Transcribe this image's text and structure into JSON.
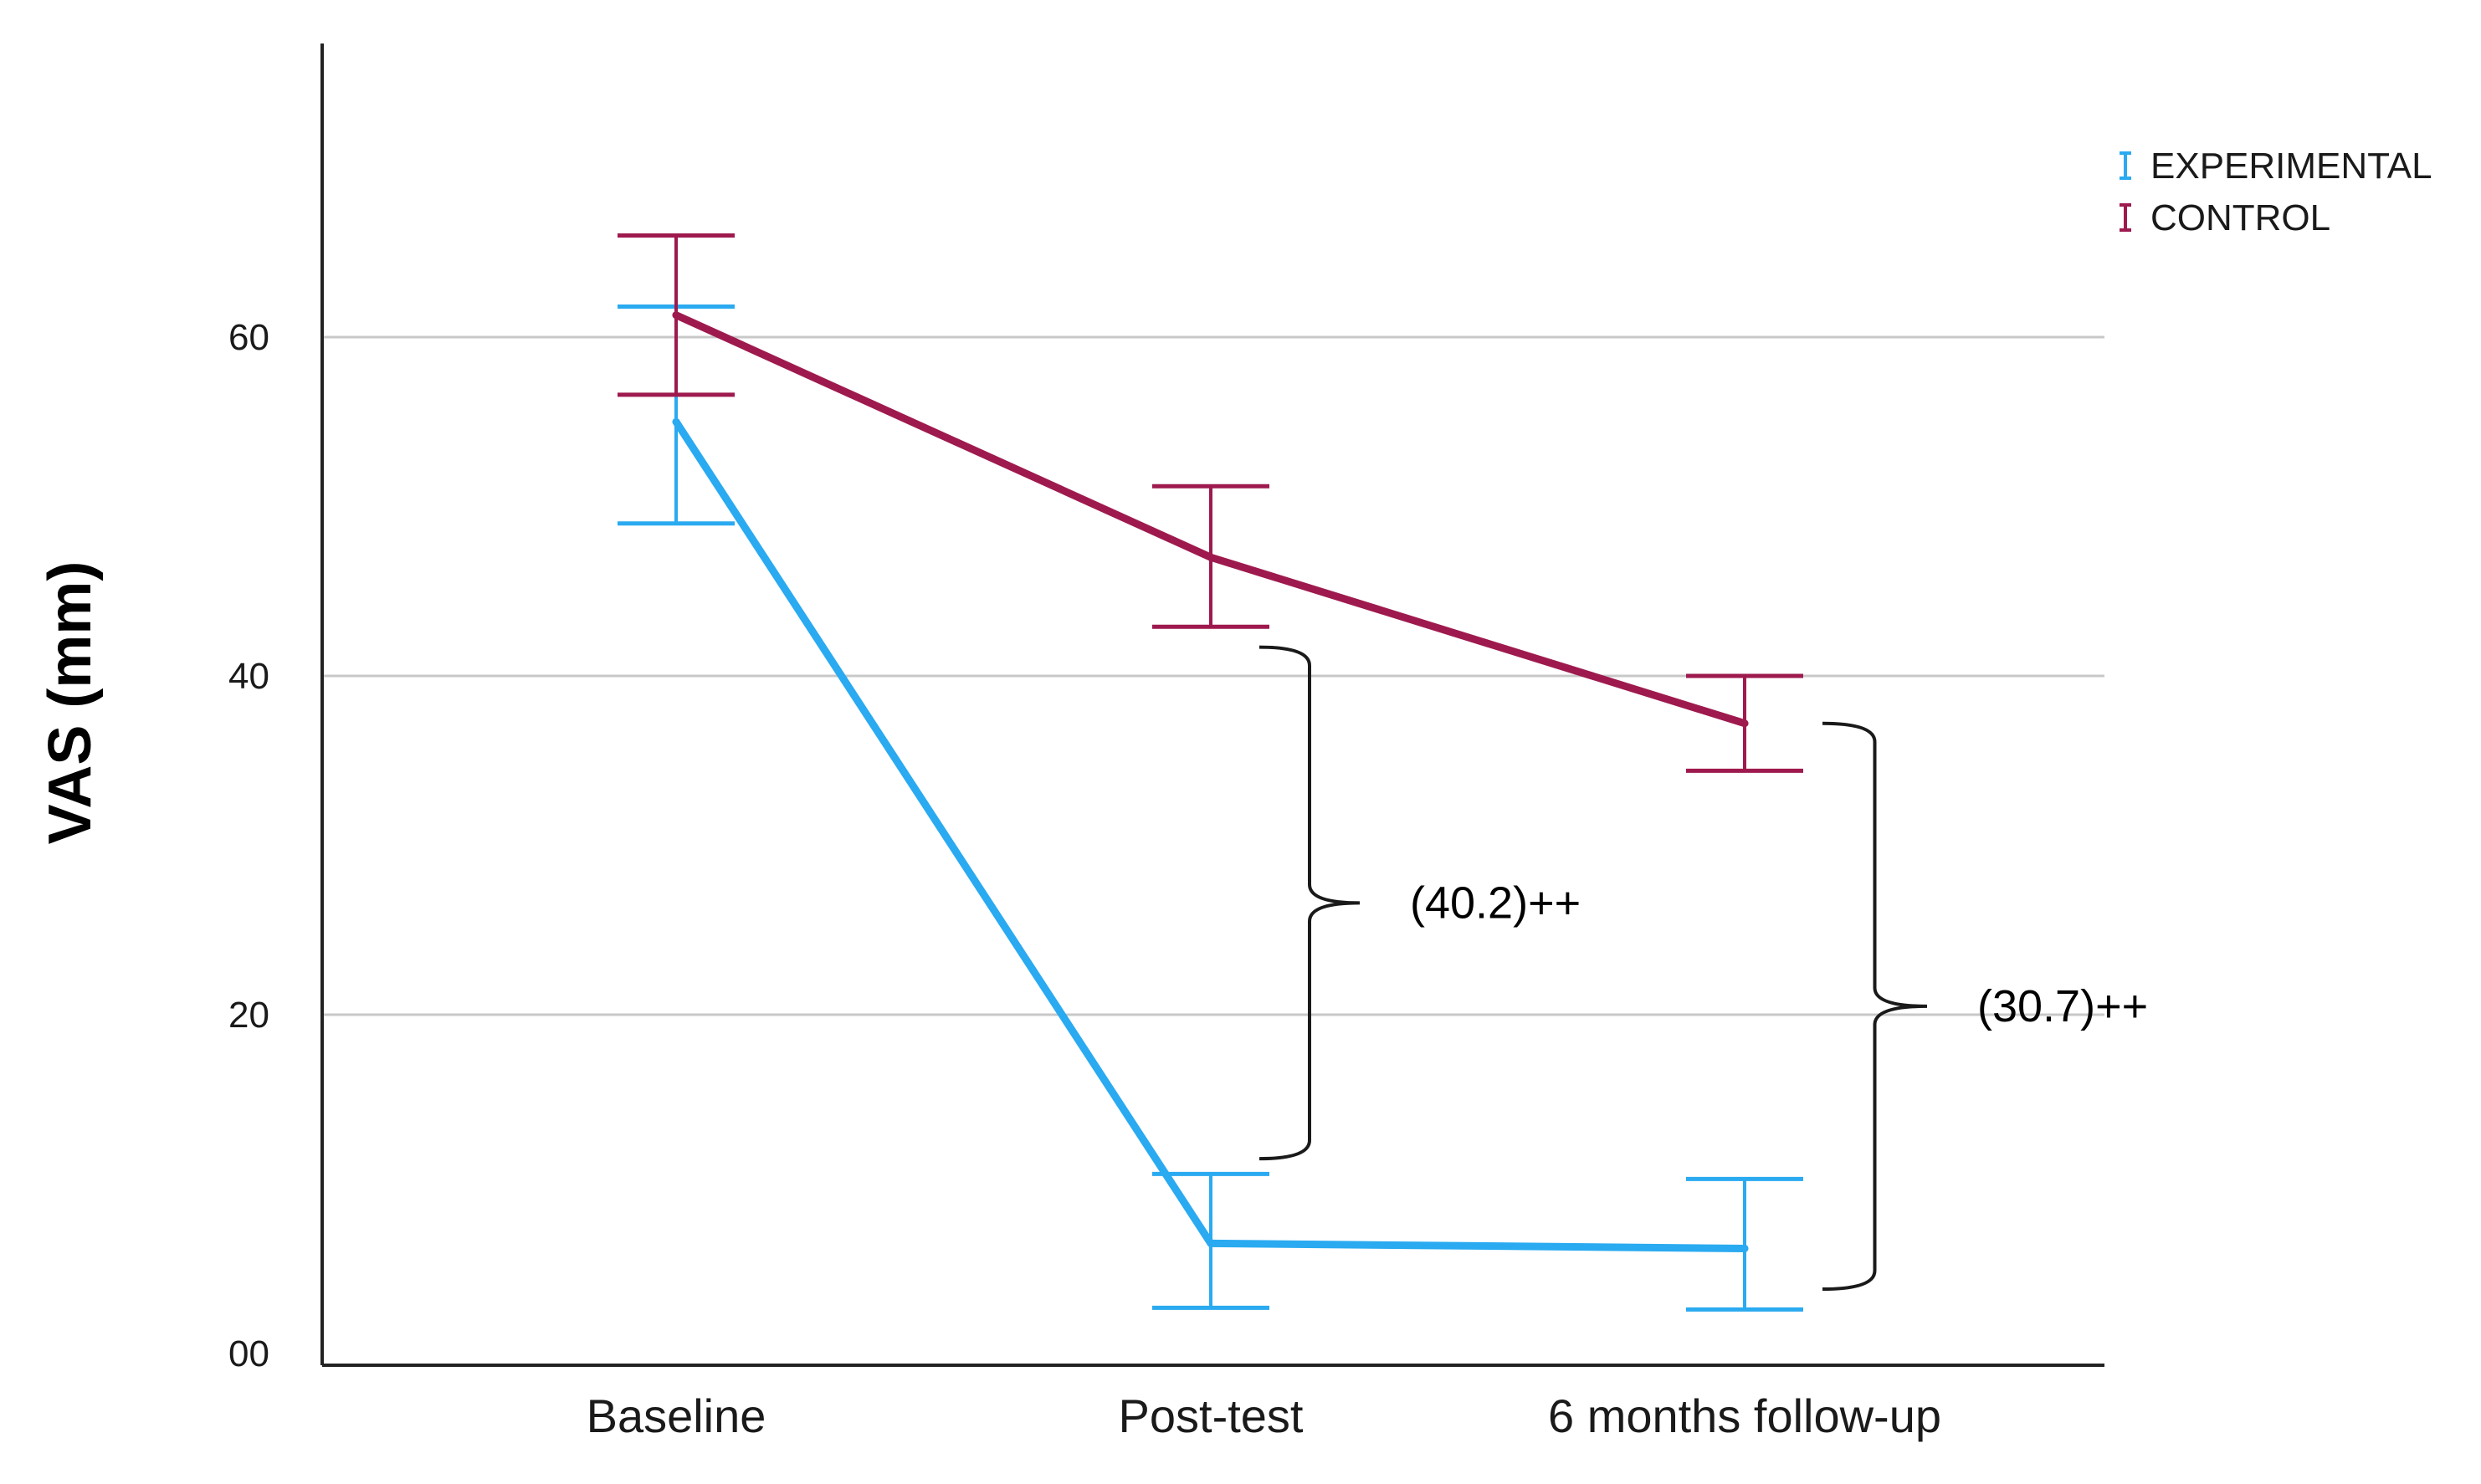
{
  "chart_data": {
    "type": "line",
    "title": "",
    "xlabel": "",
    "ylabel": "VAS (mm)",
    "ylim": [
      0,
      78
    ],
    "yticks": [
      {
        "value": 0,
        "label": "00"
      },
      {
        "value": 20,
        "label": "20"
      },
      {
        "value": 40,
        "label": "40"
      },
      {
        "value": 60,
        "label": "60"
      }
    ],
    "grid": "horizontal",
    "categories": [
      "Baseline",
      "Post-test",
      "6 months follow-up"
    ],
    "legend_position": "top-right",
    "series": [
      {
        "name": "EXPERIMENTAL",
        "color": "#2aaaf0",
        "values": [
          55,
          6.5,
          6.2
        ],
        "error_low": [
          49,
          2.7,
          2.6
        ],
        "error_high": [
          61.8,
          10.6,
          10.3
        ]
      },
      {
        "name": "CONTROL",
        "color": "#9e1a4e",
        "values": [
          61.3,
          47,
          37.2
        ],
        "error_low": [
          56.6,
          42.9,
          34.4
        ],
        "error_high": [
          66,
          51.2,
          40
        ]
      }
    ],
    "annotations": [
      {
        "text": "(40.2)++",
        "category": "Post-test",
        "from": 11.5,
        "to": 41.7
      },
      {
        "text": "(30.7)++",
        "category": "6 months follow-up",
        "from": 3.8,
        "to": 37.2
      }
    ]
  }
}
